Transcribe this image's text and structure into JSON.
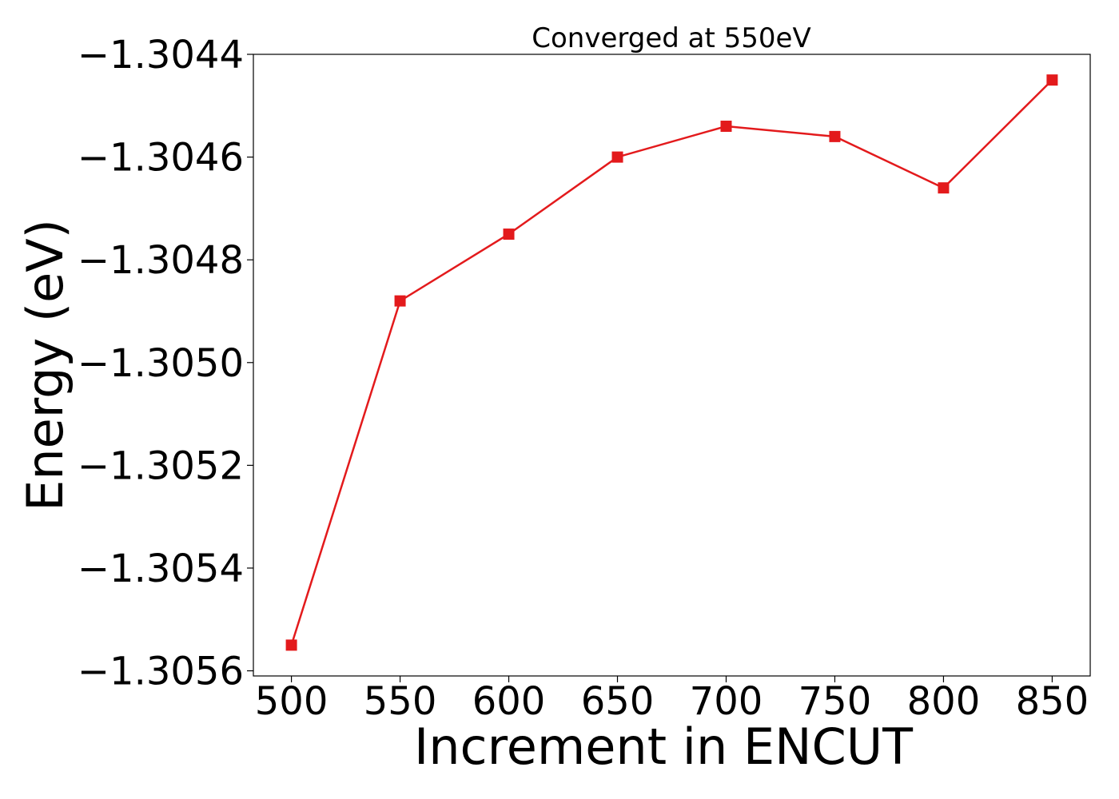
{
  "chart_data": {
    "type": "line",
    "title": "Converged at 550eV",
    "xlabel": "Increment in ENCUT",
    "ylabel": "Energy (eV)",
    "x": [
      500,
      550,
      600,
      650,
      700,
      750,
      800,
      850
    ],
    "series": [
      {
        "values": [
          -1.30555,
          -1.30488,
          -1.30475,
          -1.3046,
          -1.30454,
          -1.30456,
          -1.30466,
          -1.30445
        ]
      }
    ],
    "xticks": [
      500,
      550,
      600,
      650,
      700,
      750,
      800,
      850
    ],
    "xtick_labels": [
      "500",
      "550",
      "600",
      "650",
      "700",
      "750",
      "800",
      "850"
    ],
    "yticks": [
      -1.3056,
      -1.3054,
      -1.3052,
      -1.305,
      -1.3048,
      -1.3046,
      -1.3044
    ],
    "ytick_labels": [
      "−1.3056",
      "−1.3054",
      "−1.3052",
      "−1.3050",
      "−1.3048",
      "−1.3046",
      "−1.3044"
    ],
    "xlim": [
      482.5,
      867.5
    ],
    "ylim": [
      -1.30561,
      -1.3044
    ],
    "grid": false,
    "marker": "square",
    "color": "#e31a1c"
  }
}
